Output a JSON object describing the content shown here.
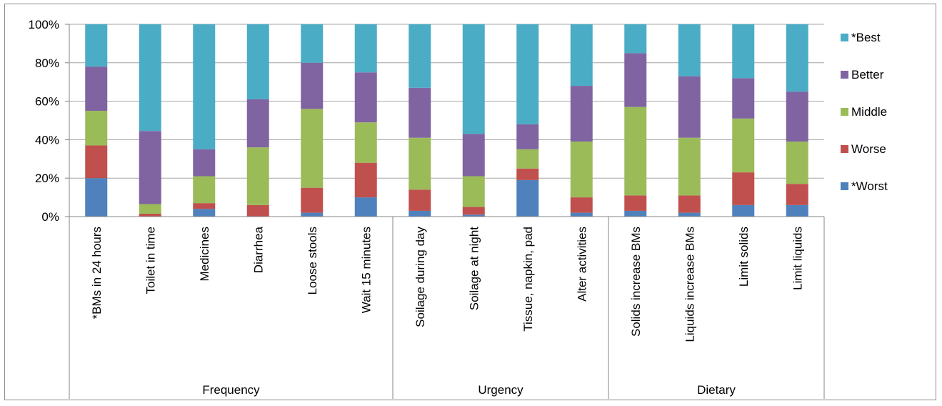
{
  "chart_data": {
    "type": "bar",
    "stacked": true,
    "percent": true,
    "title": "",
    "xlabel": "",
    "ylabel": "",
    "ylim": [
      0,
      100
    ],
    "yticks": [
      "0%",
      "20%",
      "40%",
      "60%",
      "80%",
      "100%"
    ],
    "grid": true,
    "legend_position": "right",
    "categories": [
      "*BMs in 24 hours",
      "Toilet in time",
      "Medicines",
      "Diarrhea",
      "Loose stools",
      "Wait 15 minutes",
      "Soilage during  day",
      "Soilage at night",
      "Tissue, napkin, pad",
      "Alter activities",
      "Solids increase BMs",
      "Liquids increase BMs",
      "Limit solids",
      "Limit liquids"
    ],
    "groups": [
      {
        "label": "Frequency",
        "start": 0,
        "end": 5
      },
      {
        "label": "Urgency",
        "start": 6,
        "end": 9
      },
      {
        "label": "Dietary",
        "start": 10,
        "end": 13
      }
    ],
    "series": [
      {
        "name": "*Worst",
        "color": "#4f81bd",
        "values": [
          20,
          0,
          4,
          0,
          2,
          10,
          3,
          1,
          19,
          2,
          3,
          2,
          6,
          6
        ]
      },
      {
        "name": "Worse",
        "color": "#c0504d",
        "values": [
          17,
          1.5,
          3,
          6,
          13,
          18,
          11,
          4,
          6,
          8,
          8,
          9,
          17,
          11
        ]
      },
      {
        "name": "Middle",
        "color": "#9bbb59",
        "values": [
          18,
          5,
          14,
          30,
          41,
          21,
          27,
          16,
          10,
          29,
          46,
          30,
          28,
          22
        ]
      },
      {
        "name": "Better",
        "color": "#8064a2",
        "values": [
          23,
          38,
          14,
          25,
          24,
          26,
          26,
          22,
          13,
          29,
          28,
          32,
          21,
          26
        ]
      },
      {
        "name": "*Best",
        "color": "#4bacc6",
        "values": [
          22,
          55.5,
          65,
          39,
          20,
          25,
          33,
          57,
          52,
          32,
          15,
          27,
          28,
          35
        ]
      }
    ]
  }
}
